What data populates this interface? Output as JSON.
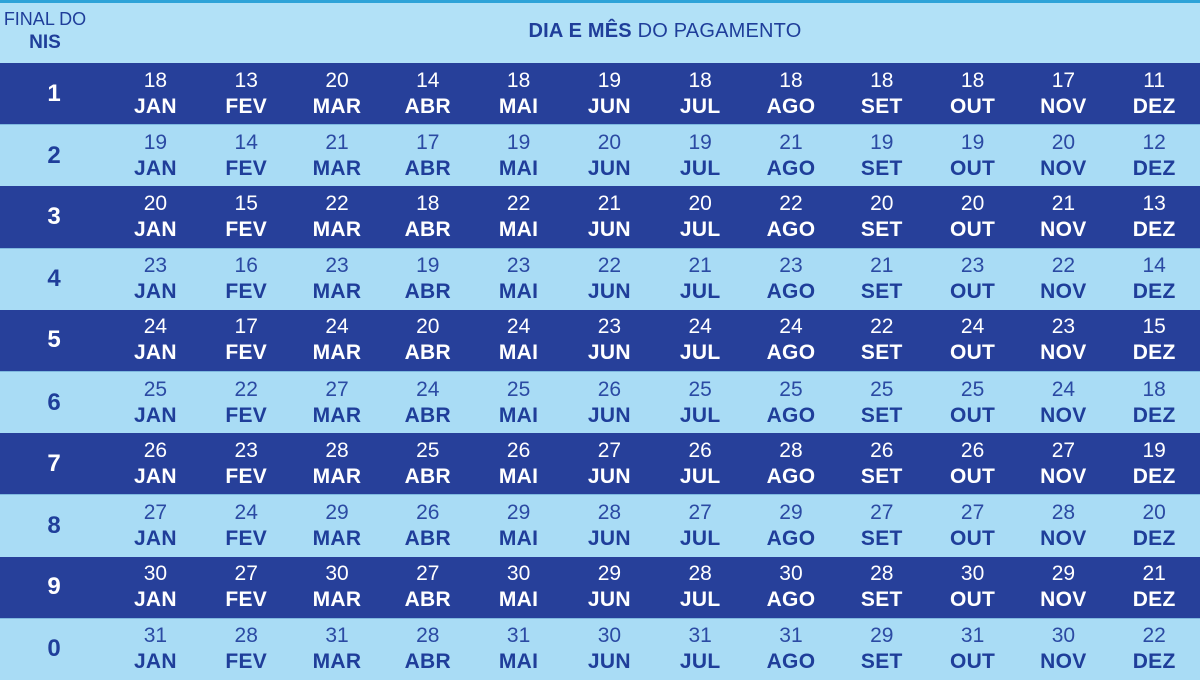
{
  "header": {
    "nis_line1": "FINAL DO",
    "nis_line2": "NIS",
    "title_bold": "DIA E MÊS",
    "title_rest": "DO PAGAMENTO"
  },
  "months": [
    "JAN",
    "FEV",
    "MAR",
    "ABR",
    "MAI",
    "JUN",
    "JUL",
    "AGO",
    "SET",
    "OUT",
    "NOV",
    "DEZ"
  ],
  "rows": [
    {
      "nis": "1",
      "days": [
        "18",
        "13",
        "20",
        "14",
        "18",
        "19",
        "18",
        "18",
        "18",
        "18",
        "17",
        "11"
      ]
    },
    {
      "nis": "2",
      "days": [
        "19",
        "14",
        "21",
        "17",
        "19",
        "20",
        "19",
        "21",
        "19",
        "19",
        "20",
        "12"
      ]
    },
    {
      "nis": "3",
      "days": [
        "20",
        "15",
        "22",
        "18",
        "22",
        "21",
        "20",
        "22",
        "20",
        "20",
        "21",
        "13"
      ]
    },
    {
      "nis": "4",
      "days": [
        "23",
        "16",
        "23",
        "19",
        "23",
        "22",
        "21",
        "23",
        "21",
        "23",
        "22",
        "14"
      ]
    },
    {
      "nis": "5",
      "days": [
        "24",
        "17",
        "24",
        "20",
        "24",
        "23",
        "24",
        "24",
        "22",
        "24",
        "23",
        "15"
      ]
    },
    {
      "nis": "6",
      "days": [
        "25",
        "22",
        "27",
        "24",
        "25",
        "26",
        "25",
        "25",
        "25",
        "25",
        "24",
        "18"
      ]
    },
    {
      "nis": "7",
      "days": [
        "26",
        "23",
        "28",
        "25",
        "26",
        "27",
        "26",
        "28",
        "26",
        "26",
        "27",
        "19"
      ]
    },
    {
      "nis": "8",
      "days": [
        "27",
        "24",
        "29",
        "26",
        "29",
        "28",
        "27",
        "29",
        "27",
        "27",
        "28",
        "20"
      ]
    },
    {
      "nis": "9",
      "days": [
        "30",
        "27",
        "30",
        "27",
        "30",
        "29",
        "28",
        "30",
        "28",
        "30",
        "29",
        "21"
      ]
    },
    {
      "nis": "0",
      "days": [
        "31",
        "28",
        "31",
        "28",
        "31",
        "30",
        "31",
        "31",
        "29",
        "31",
        "30",
        "22"
      ]
    }
  ],
  "colors": {
    "dark_row": "#27409a",
    "light_row": "#a9dcf5",
    "header_bg": "#b2e1f7",
    "text_dark": "#1f3e9a"
  }
}
